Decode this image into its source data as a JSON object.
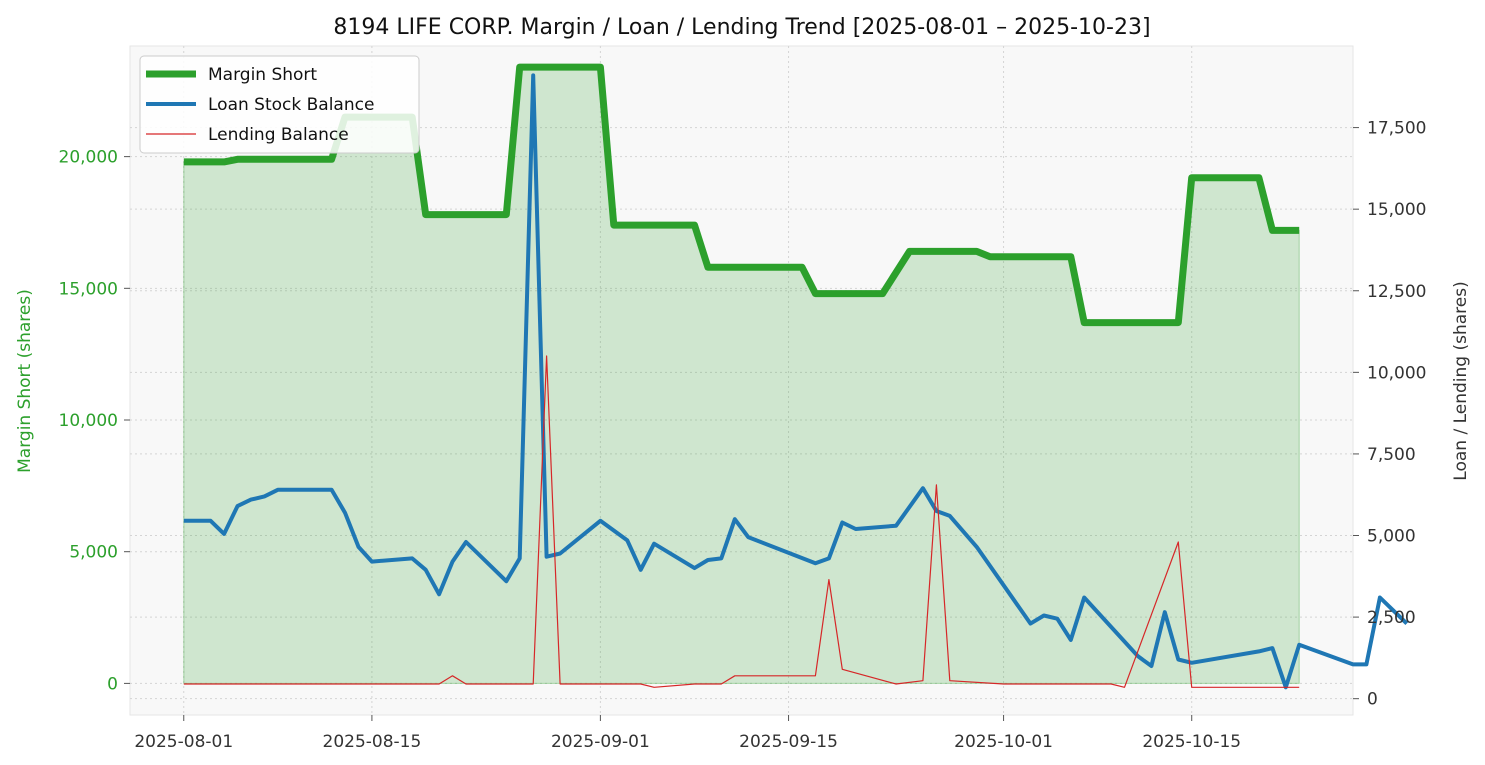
{
  "chart_data": {
    "type": "line",
    "title": "8194 LIFE CORP. Margin / Loan / Lending Trend [2025-08-01 – 2025-10-23]",
    "ylabel_left": "Margin Short (shares)",
    "ylabel_right": "Loan / Lending (shares)",
    "x_range": [
      "2025-07-28",
      "2025-10-27"
    ],
    "ylim_left": [
      -1200,
      24200
    ],
    "ylim_right": [
      -500,
      20000
    ],
    "x_ticks": [
      "2025-08-01",
      "2025-08-15",
      "2025-09-01",
      "2025-09-15",
      "2025-10-01",
      "2025-10-15"
    ],
    "y_ticks_left": [
      0,
      5000,
      10000,
      15000,
      20000
    ],
    "y_tick_labels_left": [
      "0",
      "5,000",
      "10,000",
      "15,000",
      "20,000"
    ],
    "y_ticks_right": [
      0,
      2500,
      5000,
      7500,
      10000,
      12500,
      15000,
      17500
    ],
    "y_tick_labels_right": [
      "0",
      "2,500",
      "5,000",
      "7,500",
      "10,000",
      "12,500",
      "15,000",
      "17,500"
    ],
    "legend": [
      "Margin Short",
      "Loan Stock Balance",
      "Lending Balance"
    ],
    "legend_position": "top-left",
    "series": [
      {
        "name": "Margin Short",
        "axis": "left",
        "color": "#2ca02c",
        "fill": true,
        "points": [
          [
            "2025-08-01",
            19800
          ],
          [
            "2025-08-04",
            19800
          ],
          [
            "2025-08-05",
            19900
          ],
          [
            "2025-08-12",
            19900
          ],
          [
            "2025-08-13",
            21500
          ],
          [
            "2025-08-18",
            21500
          ],
          [
            "2025-08-19",
            17800
          ],
          [
            "2025-08-25",
            17800
          ],
          [
            "2025-08-26",
            23400
          ],
          [
            "2025-09-01",
            23400
          ],
          [
            "2025-09-02",
            17400
          ],
          [
            "2025-09-08",
            17400
          ],
          [
            "2025-09-09",
            15800
          ],
          [
            "2025-09-16",
            15800
          ],
          [
            "2025-09-17",
            14800
          ],
          [
            "2025-09-22",
            14800
          ],
          [
            "2025-09-24",
            16400
          ],
          [
            "2025-09-29",
            16400
          ],
          [
            "2025-09-30",
            16200
          ],
          [
            "2025-10-06",
            16200
          ],
          [
            "2025-10-07",
            13700
          ],
          [
            "2025-10-14",
            13700
          ],
          [
            "2025-10-15",
            19200
          ],
          [
            "2025-10-20",
            19200
          ],
          [
            "2025-10-21",
            17200
          ],
          [
            "2025-10-23",
            17200
          ]
        ]
      },
      {
        "name": "Loan Stock Balance",
        "axis": "right",
        "color": "#1f77b4",
        "points": [
          [
            "2025-08-01",
            5450
          ],
          [
            "2025-08-03",
            5450
          ],
          [
            "2025-08-04",
            5050
          ],
          [
            "2025-08-05",
            5900
          ],
          [
            "2025-08-06",
            6100
          ],
          [
            "2025-08-07",
            6200
          ],
          [
            "2025-08-08",
            6400
          ],
          [
            "2025-08-12",
            6400
          ],
          [
            "2025-08-13",
            5700
          ],
          [
            "2025-08-14",
            4650
          ],
          [
            "2025-08-15",
            4200
          ],
          [
            "2025-08-18",
            4300
          ],
          [
            "2025-08-19",
            3950
          ],
          [
            "2025-08-20",
            3200
          ],
          [
            "2025-08-21",
            4200
          ],
          [
            "2025-08-22",
            4800
          ],
          [
            "2025-08-25",
            3600
          ],
          [
            "2025-08-26",
            4300
          ],
          [
            "2025-08-27",
            19100
          ],
          [
            "2025-08-28",
            4350
          ],
          [
            "2025-08-29",
            4450
          ],
          [
            "2025-09-01",
            5450
          ],
          [
            "2025-09-03",
            4850
          ],
          [
            "2025-09-04",
            3950
          ],
          [
            "2025-09-05",
            4750
          ],
          [
            "2025-09-08",
            4000
          ],
          [
            "2025-09-09",
            4250
          ],
          [
            "2025-09-10",
            4300
          ],
          [
            "2025-09-11",
            5500
          ],
          [
            "2025-09-12",
            4950
          ],
          [
            "2025-09-17",
            4150
          ],
          [
            "2025-09-18",
            4300
          ],
          [
            "2025-09-19",
            5400
          ],
          [
            "2025-09-20",
            5200
          ],
          [
            "2025-09-23",
            5300
          ],
          [
            "2025-09-25",
            6450
          ],
          [
            "2025-09-26",
            5750
          ],
          [
            "2025-09-27",
            5600
          ],
          [
            "2025-09-29",
            4650
          ],
          [
            "2025-10-03",
            2300
          ],
          [
            "2025-10-04",
            2550
          ],
          [
            "2025-10-05",
            2450
          ],
          [
            "2025-10-06",
            1800
          ],
          [
            "2025-10-07",
            3100
          ],
          [
            "2025-10-11",
            1300
          ],
          [
            "2025-10-12",
            1000
          ],
          [
            "2025-10-13",
            2650
          ],
          [
            "2025-10-14",
            1200
          ],
          [
            "2025-10-15",
            1100
          ],
          [
            "2025-10-20",
            1450
          ],
          [
            "2025-10-21",
            1550
          ],
          [
            "2025-10-22",
            350
          ],
          [
            "2025-10-23",
            1650
          ],
          [
            "2025-10-27",
            1050
          ],
          [
            "2025-10-28",
            1050
          ],
          [
            "2025-10-29",
            3100
          ],
          [
            "2025-10-31",
            2300
          ]
        ]
      },
      {
        "name": "Lending Balance",
        "axis": "right",
        "color": "#d62728",
        "points": [
          [
            "2025-08-01",
            450
          ],
          [
            "2025-08-20",
            450
          ],
          [
            "2025-08-21",
            700
          ],
          [
            "2025-08-22",
            450
          ],
          [
            "2025-08-27",
            450
          ],
          [
            "2025-08-28",
            10500
          ],
          [
            "2025-08-29",
            450
          ],
          [
            "2025-09-04",
            450
          ],
          [
            "2025-09-05",
            350
          ],
          [
            "2025-09-08",
            450
          ],
          [
            "2025-09-10",
            450
          ],
          [
            "2025-09-11",
            700
          ],
          [
            "2025-09-16",
            700
          ],
          [
            "2025-09-17",
            700
          ],
          [
            "2025-09-18",
            3650
          ],
          [
            "2025-09-19",
            900
          ],
          [
            "2025-09-23",
            450
          ],
          [
            "2025-09-25",
            550
          ],
          [
            "2025-09-26",
            6550
          ],
          [
            "2025-09-27",
            550
          ],
          [
            "2025-10-01",
            450
          ],
          [
            "2025-10-09",
            450
          ],
          [
            "2025-10-10",
            350
          ],
          [
            "2025-10-14",
            4800
          ],
          [
            "2025-10-15",
            350
          ],
          [
            "2025-10-23",
            350
          ]
        ]
      }
    ]
  }
}
